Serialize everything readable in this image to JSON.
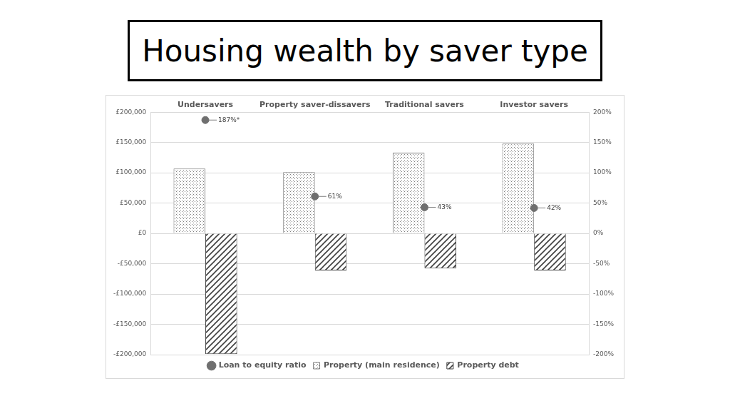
{
  "chart_data": {
    "type": "bar",
    "title": "Housing wealth by saver type",
    "categories": [
      "Undersavers",
      "Property saver-dissavers",
      "Traditional savers",
      "Investor savers"
    ],
    "series": [
      {
        "name": "Property (main residence)",
        "type": "bar",
        "color": "#7f7f7f",
        "values": [
          107000,
          101000,
          133000,
          148000
        ]
      },
      {
        "name": "Property debt",
        "type": "bar",
        "color": "#404040",
        "values": [
          -199000,
          -61000,
          -58000,
          -61000
        ]
      },
      {
        "name": "Loan to equity ratio",
        "type": "line",
        "axis": "y2",
        "color": "#6f6f6f",
        "marker": "circle",
        "line_style": "none",
        "values": [
          187,
          61,
          43,
          42
        ],
        "value_labels": [
          "187%*",
          "61%",
          "43%",
          "42%"
        ]
      }
    ],
    "ylim": [
      -200000,
      200000
    ],
    "yticks": [
      {
        "value": -200000,
        "label": "-£200,000"
      },
      {
        "value": -150000,
        "label": "-£150,000"
      },
      {
        "value": -100000,
        "label": "-£100,000"
      },
      {
        "value": -50000,
        "label": "-£50,000"
      },
      {
        "value": 0,
        "label": "£0"
      },
      {
        "value": 50000,
        "label": "£50,000"
      },
      {
        "value": 100000,
        "label": "£100,000"
      },
      {
        "value": 150000,
        "label": "£150,000"
      },
      {
        "value": 200000,
        "label": "£200,000"
      }
    ],
    "y2lim": [
      -200,
      200
    ],
    "y2ticks": [
      {
        "value": -200,
        "label": "-200%"
      },
      {
        "value": -150,
        "label": "-150%"
      },
      {
        "value": -100,
        "label": "-100%"
      },
      {
        "value": -50,
        "label": "-50%"
      },
      {
        "value": 0,
        "label": "0%"
      },
      {
        "value": 50,
        "label": "50%"
      },
      {
        "value": 100,
        "label": "100%"
      },
      {
        "value": 150,
        "label": "150%"
      },
      {
        "value": 200,
        "label": "200%"
      }
    ],
    "grid": true,
    "legend": "bottom"
  }
}
